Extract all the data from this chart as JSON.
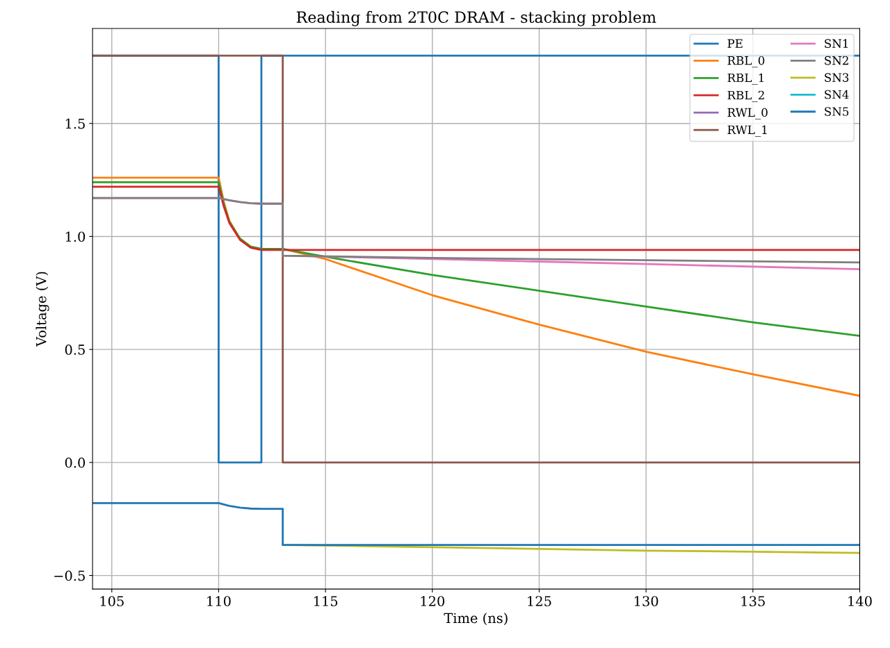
{
  "chart_data": {
    "type": "line",
    "title": "Reading from 2T0C DRAM - stacking problem",
    "xlabel": "Time (ns)",
    "ylabel": "Voltage (V)",
    "xlim": [
      104.1,
      140
    ],
    "ylim": [
      -0.56,
      1.92
    ],
    "xticks": [
      105,
      110,
      115,
      120,
      125,
      130,
      135,
      140
    ],
    "yticks": [
      {
        "value": -0.5,
        "label": "−0.5"
      },
      {
        "value": 0,
        "label": "0.0"
      },
      {
        "value": 0.5,
        "label": "0.5"
      },
      {
        "value": 1.0,
        "label": "1.0"
      },
      {
        "value": 1.5,
        "label": "1.5"
      }
    ],
    "grid": true,
    "legend": "top right",
    "marker": "none",
    "line_style": "solid",
    "series": [
      {
        "name": "PE",
        "color": "#1f77b4",
        "x": [
          104.1,
          110,
          110,
          112,
          112,
          140
        ],
        "values": [
          1.8,
          1.8,
          0,
          0,
          1.8,
          1.8
        ]
      },
      {
        "name": "RBL_0",
        "color": "#ff7f0e",
        "x": [
          104.1,
          110,
          110.25,
          110.5,
          111,
          111.5,
          112,
          113,
          115,
          120,
          125,
          130,
          135,
          140
        ],
        "values": [
          1.26,
          1.26,
          1.15,
          1.07,
          0.99,
          0.955,
          0.945,
          0.945,
          0.9,
          0.74,
          0.61,
          0.49,
          0.39,
          0.295
        ]
      },
      {
        "name": "RBL_1",
        "color": "#2ca02c",
        "x": [
          104.1,
          110,
          110.25,
          110.5,
          111,
          111.5,
          112,
          113,
          115,
          120,
          125,
          130,
          135,
          140
        ],
        "values": [
          1.24,
          1.24,
          1.14,
          1.065,
          0.99,
          0.955,
          0.945,
          0.945,
          0.91,
          0.83,
          0.76,
          0.69,
          0.62,
          0.56
        ]
      },
      {
        "name": "RBL_2",
        "color": "#d62728",
        "x": [
          104.1,
          110,
          110.25,
          110.5,
          111,
          111.5,
          112,
          140
        ],
        "values": [
          1.22,
          1.22,
          1.13,
          1.06,
          0.985,
          0.95,
          0.94,
          0.94
        ]
      },
      {
        "name": "RWL_0",
        "color": "#9467bd"
      },
      {
        "name": "RWL_1",
        "color": "#8c564b",
        "x": [
          104.1,
          113,
          113,
          140
        ],
        "values": [
          1.8,
          1.8,
          0,
          0
        ]
      },
      {
        "name": "SN1",
        "color": "#e377c2",
        "x": [
          104.1,
          110,
          110.5,
          111,
          111.5,
          112,
          113,
          113,
          120,
          130,
          140
        ],
        "values": [
          1.17,
          1.17,
          1.16,
          1.152,
          1.147,
          1.145,
          1.145,
          0.915,
          0.9,
          0.878,
          0.855
        ]
      },
      {
        "name": "SN2",
        "color": "#7f7f7f",
        "x": [
          104.1,
          110,
          110.5,
          111,
          111.5,
          112,
          113,
          113,
          120,
          130,
          140
        ],
        "values": [
          1.17,
          1.17,
          1.16,
          1.152,
          1.147,
          1.145,
          1.145,
          0.915,
          0.905,
          0.895,
          0.885
        ]
      },
      {
        "name": "SN3",
        "color": "#bcbd22",
        "x": [
          113,
          120,
          130,
          140
        ],
        "values": [
          -0.365,
          -0.375,
          -0.39,
          -0.4
        ]
      },
      {
        "name": "SN4",
        "color": "#17becf"
      },
      {
        "name": "SN5",
        "color": "#1f77b4",
        "x": [
          104.1,
          110,
          110.5,
          111,
          111.5,
          112,
          113,
          113,
          140
        ],
        "values": [
          -0.18,
          -0.18,
          -0.192,
          -0.2,
          -0.204,
          -0.205,
          -0.205,
          -0.365,
          -0.365
        ]
      }
    ]
  }
}
